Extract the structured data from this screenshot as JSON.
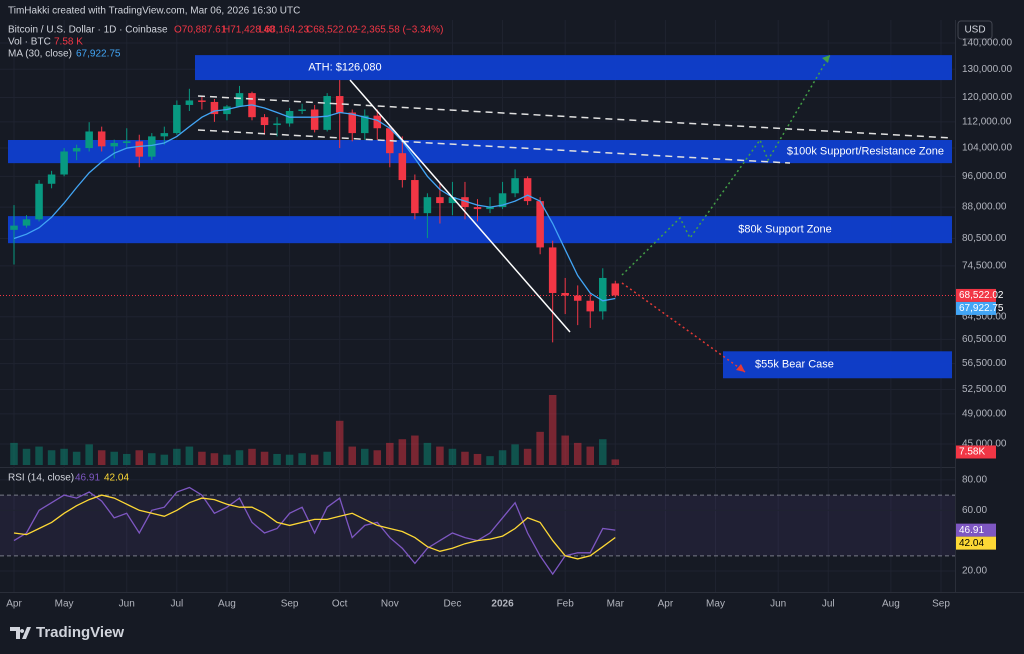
{
  "header": {
    "credit": "TimHakki created with TradingView.com, Mar 06, 2026 16:30 UTC",
    "symbol": "Bitcoin / U.S. Dollar · 1D · Coinbase",
    "ohlc": [
      "O70,887.61",
      "H71,428.40",
      "L68,164.23",
      "C68,522.02",
      "−2,365.58 (−3.34%)"
    ],
    "volume_label": "Vol · BTC",
    "volume_value": "7.58 K",
    "ma_label": "MA (30, close)",
    "ma_value": "67,922.75",
    "rsi_label": "RSI (14, close)"
  },
  "currency": "USD",
  "logo": "TradingView",
  "chart_data": {
    "type": "candlestick",
    "categories": [
      "Apr",
      null,
      null,
      null,
      "May",
      null,
      null,
      null,
      null,
      "Jun",
      null,
      null,
      null,
      "Jul",
      null,
      null,
      null,
      "Aug",
      null,
      null,
      null,
      null,
      "Sep",
      null,
      null,
      null,
      "Oct",
      null,
      null,
      null,
      "Nov",
      null,
      null,
      null,
      null,
      "Dec",
      null,
      null,
      null,
      "2026",
      null,
      null,
      null,
      null,
      "Feb",
      null,
      null,
      null,
      "Mar",
      null,
      null,
      null,
      "Apr",
      null,
      null,
      null,
      "May",
      null,
      null,
      null,
      null,
      "Jun",
      null,
      null,
      null,
      "Jul",
      null,
      null,
      null,
      null,
      "Aug",
      null,
      null,
      null,
      "Sep"
    ],
    "open": [
      82500,
      83500,
      85000,
      94000,
      96500,
      103000,
      104000,
      109000,
      104500,
      105500,
      106000,
      101500,
      107500,
      108500,
      117500,
      119000,
      118500,
      114500,
      117000,
      121500,
      113500,
      111000,
      111500,
      115500,
      116000,
      109500,
      120500,
      115000,
      108500,
      114000,
      110000,
      102500,
      95000,
      86500,
      90500,
      89000,
      90500,
      88000,
      87500,
      88000,
      91500,
      95500,
      89500,
      78500,
      69000,
      68500,
      67500,
      65500,
      70887.61,
      null,
      null,
      null,
      null,
      null,
      null,
      null,
      null,
      null,
      null,
      null,
      null,
      null,
      null,
      null,
      null,
      null,
      null,
      null,
      null,
      null,
      null,
      null,
      null,
      null,
      null
    ],
    "high": [
      88500,
      86000,
      95000,
      97500,
      104000,
      105000,
      111900,
      110500,
      106500,
      110000,
      108000,
      108500,
      110500,
      119000,
      123000,
      120500,
      119500,
      117500,
      124000,
      122000,
      114500,
      113500,
      116500,
      117900,
      117500,
      121500,
      126080,
      116000,
      116000,
      116000,
      111000,
      107500,
      96500,
      91500,
      94000,
      94500,
      94500,
      90000,
      90500,
      94500,
      97900,
      96000,
      90500,
      80000,
      72000,
      70500,
      69000,
      74000,
      71428.4,
      null,
      null,
      null,
      null,
      null,
      null,
      null,
      null,
      null,
      null,
      null,
      null,
      null,
      null,
      null,
      null,
      null,
      null,
      null,
      null,
      null,
      null,
      null,
      null,
      null,
      null
    ],
    "low": [
      74800,
      83000,
      84500,
      92800,
      96000,
      100500,
      103000,
      103000,
      101000,
      104000,
      98500,
      100500,
      105000,
      108000,
      115500,
      116000,
      112000,
      112500,
      117000,
      112500,
      108000,
      107500,
      110500,
      114500,
      108700,
      109000,
      104000,
      106000,
      106500,
      106500,
      98500,
      93000,
      85000,
      80600,
      84000,
      86000,
      85000,
      84500,
      86500,
      87500,
      90500,
      88500,
      77000,
      60000,
      65000,
      63000,
      62500,
      64000,
      68164.23,
      null,
      null,
      null,
      null,
      null,
      null,
      null,
      null,
      null,
      null,
      null,
      null,
      null,
      null,
      null,
      null,
      null,
      null,
      null,
      null,
      null,
      null,
      null,
      null,
      null,
      null
    ],
    "close": [
      83500,
      85000,
      94000,
      96500,
      103000,
      104000,
      109000,
      104500,
      105500,
      106000,
      101500,
      107500,
      108500,
      117500,
      119000,
      118500,
      114500,
      117000,
      121500,
      113500,
      111000,
      111500,
      115500,
      116000,
      109500,
      120500,
      115000,
      108500,
      114000,
      110000,
      102500,
      95000,
      86500,
      90500,
      89000,
      90500,
      88000,
      87500,
      88000,
      91500,
      95500,
      89500,
      78500,
      69000,
      68500,
      67500,
      65500,
      72000,
      68522.02,
      null,
      null,
      null,
      null,
      null,
      null,
      null,
      null,
      null,
      null,
      null,
      null,
      null,
      null,
      null,
      null,
      null,
      null,
      null,
      null,
      null,
      null,
      null,
      null,
      null,
      null
    ],
    "close_label": "68,522.02",
    "up_color": "#089981",
    "down_color": "#f23645",
    "ylim": [
      42400,
      148600
    ],
    "log_scale": true,
    "grid": true,
    "yticks": [
      {
        "value": 140000,
        "label": "140,000.00"
      },
      {
        "value": 130000,
        "label": "130,000.00"
      },
      {
        "value": 120000,
        "label": "120,000.00"
      },
      {
        "value": 112000,
        "label": "112,000.00"
      },
      {
        "value": 104000,
        "label": "104,000.00"
      },
      {
        "value": 96000,
        "label": "96,000.00"
      },
      {
        "value": 88000,
        "label": "88,000.00"
      },
      {
        "value": 80500,
        "label": "80,500.00"
      },
      {
        "value": 74500,
        "label": "74,500.00"
      },
      {
        "value": 64500,
        "label": "64,500.00"
      },
      {
        "value": 60500,
        "label": "60,500.00"
      },
      {
        "value": 56500,
        "label": "56,500.00"
      },
      {
        "value": 52500,
        "label": "52,500.00"
      },
      {
        "value": 49000,
        "label": "49,000.00"
      },
      {
        "value": 45000,
        "label": "45,000.00"
      }
    ],
    "ma": {
      "name": "MA (30, close)",
      "color": "#42a5f5",
      "value_label": "67,922.75",
      "values": [
        80500,
        81500,
        83000,
        85500,
        89000,
        93000,
        97000,
        100000,
        102500,
        104000,
        104500,
        104800,
        105500,
        107500,
        110500,
        113500,
        115500,
        116000,
        117000,
        117500,
        116500,
        115000,
        113500,
        113500,
        113500,
        113800,
        115000,
        114500,
        113500,
        112500,
        110000,
        106000,
        101000,
        96000,
        92500,
        90500,
        89500,
        88500,
        88000,
        88500,
        89500,
        91000,
        89500,
        84000,
        78000,
        72500,
        69000,
        67500,
        67922.75,
        null,
        null,
        null,
        null,
        null,
        null,
        null,
        null,
        null,
        null,
        null,
        null,
        null,
        null,
        null,
        null,
        null,
        null,
        null,
        null,
        null,
        null,
        null,
        null,
        null,
        null
      ]
    },
    "volume": {
      "value_label": "7.58K",
      "values": [
        30,
        22,
        25,
        20,
        22,
        18,
        28,
        20,
        18,
        15,
        20,
        16,
        14,
        22,
        25,
        18,
        16,
        14,
        20,
        22,
        18,
        15,
        14,
        16,
        14,
        18,
        60,
        25,
        22,
        20,
        30,
        35,
        40,
        30,
        25,
        22,
        18,
        15,
        12,
        20,
        28,
        22,
        45,
        95,
        40,
        30,
        25,
        35,
        7.58,
        null,
        null,
        null,
        null,
        null,
        null,
        null,
        null,
        null,
        null,
        null,
        null,
        null,
        null,
        null,
        null,
        null,
        null,
        null,
        null,
        null,
        null,
        null,
        null,
        null,
        null
      ]
    },
    "rsi": {
      "color": "#7e57c2",
      "ma_color": "#fdd835",
      "values": [
        40,
        45,
        60,
        65,
        70,
        68,
        72,
        66,
        55,
        58,
        45,
        60,
        62,
        72,
        75,
        70,
        58,
        62,
        68,
        52,
        45,
        48,
        58,
        62,
        45,
        62,
        68,
        42,
        50,
        52,
        42,
        35,
        25,
        35,
        40,
        45,
        42,
        40,
        45,
        55,
        65,
        45,
        30,
        18,
        30,
        32,
        32,
        48,
        46.91,
        null,
        null,
        null,
        null,
        null,
        null,
        null,
        null,
        null,
        null,
        null,
        null,
        null,
        null,
        null,
        null,
        null,
        null,
        null,
        null,
        null,
        null,
        null,
        null,
        null,
        null
      ],
      "ma": [
        45,
        44,
        48,
        52,
        58,
        63,
        67,
        70,
        68,
        64,
        60,
        58,
        56,
        60,
        65,
        68,
        67,
        64,
        62,
        62,
        58,
        52,
        50,
        52,
        54,
        54,
        56,
        58,
        54,
        50,
        48,
        46,
        42,
        36,
        33,
        35,
        38,
        40,
        41,
        43,
        48,
        55,
        52,
        40,
        30,
        28,
        30,
        36,
        42.04,
        null,
        null,
        null,
        null,
        null,
        null,
        null,
        null,
        null,
        null,
        null,
        null,
        null,
        null,
        null,
        null,
        null,
        null,
        null,
        null,
        null,
        null,
        null,
        null,
        null,
        null
      ],
      "ylim": [
        7.5,
        86.5
      ],
      "yticks": [
        {
          "value": 80,
          "label": "80.00"
        },
        {
          "value": 60,
          "label": "60.00"
        },
        {
          "value": 20,
          "label": "20.00"
        }
      ],
      "bands": [
        30,
        70
      ]
    },
    "zones": [
      {
        "label": "ATH: $126,080",
        "low": 126070,
        "high": 135300
      },
      {
        "label": "$100k Support/Resistance Zone",
        "low": 99650,
        "high": 106400
      },
      {
        "label": "$80k Support Zone",
        "low": 79450,
        "high": 85770
      },
      {
        "label": "$55k Bear Case",
        "low": 54200,
        "high": 58500
      }
    ]
  }
}
